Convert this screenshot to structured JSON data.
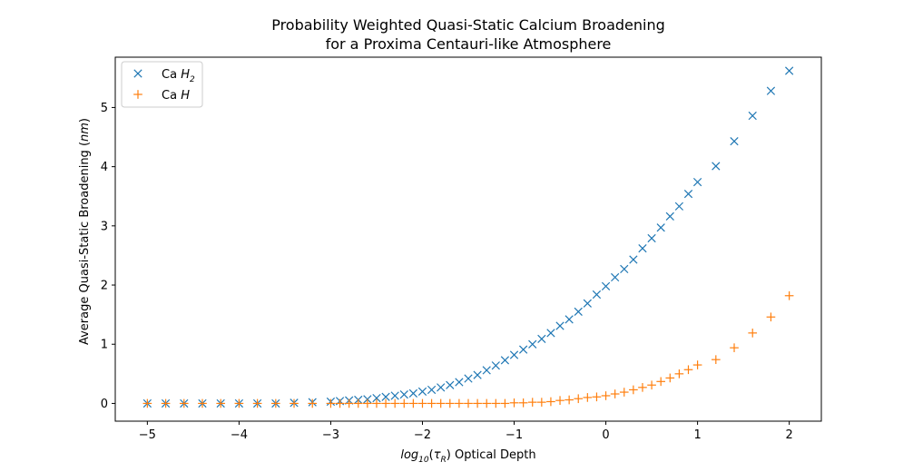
{
  "chart_data": {
    "type": "scatter",
    "title_line1": "Probability Weighted Quasi-Static Calcium Broadening",
    "title_line2": "for a Proxima Centauri-like Atmosphere",
    "xlabel_log": "log",
    "xlabel_sub": "10",
    "xlabel_tau": "τ",
    "xlabel_tau_sub": "R",
    "xlabel_rest": "Optical Depth",
    "ylabel": "Average Quasi-Static Broadening",
    "ylabel_unit": "nm",
    "xlim": [
      -5.35,
      2.35
    ],
    "ylim": [
      -0.3,
      5.85
    ],
    "xticks": [
      -5,
      -4,
      -3,
      -2,
      -1,
      0,
      1,
      2
    ],
    "xtick_labels": [
      "−5",
      "−4",
      "−3",
      "−2",
      "−1",
      "0",
      "1",
      "2"
    ],
    "yticks": [
      0,
      1,
      2,
      3,
      4,
      5
    ],
    "ytick_labels": [
      "0",
      "1",
      "2",
      "3",
      "4",
      "5"
    ],
    "legend_position": "top-left",
    "series": [
      {
        "name": "Ca H2",
        "name_base": "Ca ",
        "name_italic": "H",
        "name_sub": "2",
        "marker": "x",
        "color": "#1f77b4",
        "x": [
          -5.0,
          -4.8,
          -4.6,
          -4.4,
          -4.2,
          -4.0,
          -3.8,
          -3.6,
          -3.4,
          -3.2,
          -3.0,
          -2.9,
          -2.8,
          -2.7,
          -2.6,
          -2.5,
          -2.4,
          -2.3,
          -2.2,
          -2.1,
          -2.0,
          -1.9,
          -1.8,
          -1.7,
          -1.6,
          -1.5,
          -1.4,
          -1.3,
          -1.2,
          -1.1,
          -1.0,
          -0.9,
          -0.8,
          -0.7,
          -0.6,
          -0.5,
          -0.4,
          -0.3,
          -0.2,
          -0.1,
          0.0,
          0.1,
          0.2,
          0.3,
          0.4,
          0.5,
          0.6,
          0.7,
          0.8,
          0.9,
          1.0,
          1.2,
          1.4,
          1.6,
          1.8,
          2.0
        ],
        "y": [
          0.0,
          0.0,
          0.0,
          0.0,
          0.0,
          0.0,
          0.0,
          0.0,
          0.01,
          0.02,
          0.03,
          0.04,
          0.05,
          0.06,
          0.07,
          0.09,
          0.11,
          0.13,
          0.15,
          0.17,
          0.2,
          0.23,
          0.27,
          0.31,
          0.36,
          0.42,
          0.48,
          0.56,
          0.64,
          0.73,
          0.82,
          0.91,
          1.0,
          1.09,
          1.19,
          1.31,
          1.42,
          1.55,
          1.69,
          1.84,
          1.98,
          2.13,
          2.27,
          2.43,
          2.62,
          2.79,
          2.97,
          3.16,
          3.33,
          3.54,
          3.74,
          4.01,
          4.43,
          4.86,
          5.28,
          5.62
        ]
      },
      {
        "name": "Ca H",
        "name_base": "Ca ",
        "name_italic": "H",
        "name_sub": "",
        "marker": "+",
        "color": "#ff7f0e",
        "x": [
          -5.0,
          -4.8,
          -4.6,
          -4.4,
          -4.2,
          -4.0,
          -3.8,
          -3.6,
          -3.4,
          -3.2,
          -3.0,
          -2.9,
          -2.8,
          -2.7,
          -2.6,
          -2.5,
          -2.4,
          -2.3,
          -2.2,
          -2.1,
          -2.0,
          -1.9,
          -1.8,
          -1.7,
          -1.6,
          -1.5,
          -1.4,
          -1.3,
          -1.2,
          -1.1,
          -1.0,
          -0.9,
          -0.8,
          -0.7,
          -0.6,
          -0.5,
          -0.4,
          -0.3,
          -0.2,
          -0.1,
          0.0,
          0.1,
          0.2,
          0.3,
          0.4,
          0.5,
          0.6,
          0.7,
          0.8,
          0.9,
          1.0,
          1.2,
          1.4,
          1.6,
          1.8,
          2.0
        ],
        "y": [
          0.0,
          0.0,
          0.0,
          0.0,
          0.0,
          0.0,
          0.0,
          0.0,
          0.0,
          0.0,
          0.0,
          0.0,
          0.0,
          0.0,
          0.0,
          0.0,
          0.0,
          0.0,
          0.0,
          0.0,
          0.0,
          0.0,
          0.0,
          0.0,
          0.0,
          0.0,
          0.0,
          0.0,
          0.0,
          0.0,
          0.01,
          0.01,
          0.02,
          0.02,
          0.03,
          0.05,
          0.06,
          0.08,
          0.1,
          0.11,
          0.13,
          0.16,
          0.19,
          0.23,
          0.27,
          0.31,
          0.37,
          0.43,
          0.5,
          0.57,
          0.65,
          0.74,
          0.94,
          1.19,
          1.46,
          1.82
        ]
      }
    ]
  }
}
